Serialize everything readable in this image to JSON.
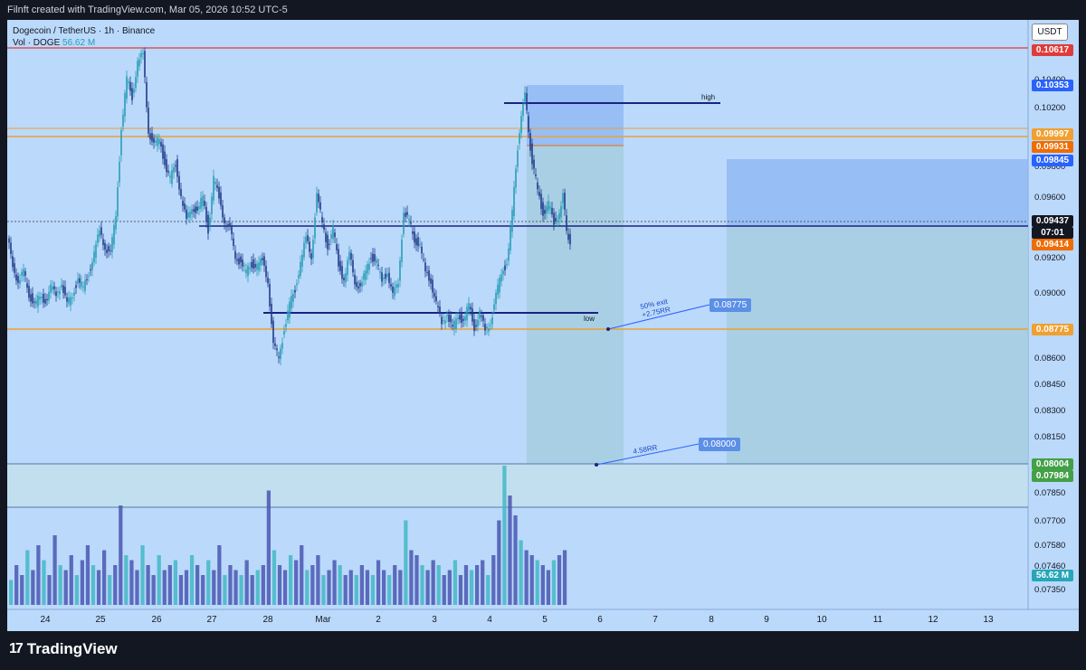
{
  "header": {
    "text": "Filnft created with TradingView.com, Mar 05, 2026 10:52 UTC-5"
  },
  "legend": {
    "symbol_line": "Dogecoin / TetherUS · 1h · Binance",
    "vol_label": "Vol · DOGE",
    "vol_value": "56.62 M"
  },
  "footer": {
    "brand": "TradingView"
  },
  "colors": {
    "background": "#bbd9fb",
    "candle": "#1f3a8a",
    "candle_up_light": "#2a9db5",
    "red_line": "#e03b3b",
    "orange_line": "#f0a030",
    "navy_line": "#1a237e",
    "target_zone": "#a6cde0",
    "stop_zone": "#8cb4f4",
    "volume": "#4a56b0"
  },
  "chart_data": {
    "type": "candlestick",
    "symbol": "Dogecoin / TetherUS",
    "timeframe": "1h",
    "exchange": "Binance",
    "currency_label": "USDT",
    "x_axis_ticks": [
      "24",
      "25",
      "26",
      "27",
      "28",
      "Mar",
      "2",
      "3",
      "4",
      "5",
      "6",
      "7",
      "8",
      "9",
      "10",
      "11",
      "12",
      "13"
    ],
    "y_axis_ticks": [
      "0.10400",
      "0.10200",
      "0.09800",
      "0.09600",
      "0.09200",
      "0.09000",
      "0.08600",
      "0.08450",
      "0.08300",
      "0.08150",
      "0.07850",
      "0.07700",
      "0.07580",
      "0.07460",
      "0.07350"
    ],
    "price_tags": [
      {
        "label": "0.10617",
        "color": "#e03b3b"
      },
      {
        "label": "0.10353",
        "color": "#2962ff"
      },
      {
        "label": "0.09997",
        "color": "#f0a030"
      },
      {
        "label": "0.09931",
        "color": "#ef6c00"
      },
      {
        "label": "0.09845",
        "color": "#2962ff"
      },
      {
        "label": "0.09437",
        "color": "#131722"
      },
      {
        "label": "07:01",
        "color": "#131722"
      },
      {
        "label": "0.09414",
        "color": "#ef6c00"
      },
      {
        "label": "0.08775",
        "color": "#f0a030"
      },
      {
        "label": "0.08004",
        "color": "#43a047"
      },
      {
        "label": "0.07984",
        "color": "#43a047"
      },
      {
        "label": "56.62 M",
        "color": "#26a6b8"
      }
    ],
    "levels": {
      "resistance_red": 0.10617,
      "orange_upper": 0.09997,
      "orange_lower": 0.08775,
      "entry": 0.09414,
      "high_line": 0.10353,
      "low_line": 0.0885
    },
    "annotations": [
      {
        "text": "high"
      },
      {
        "text": "low"
      },
      {
        "text": "50% exit +2.75RR",
        "line1": "50% exit",
        "line2": "+2.75RR",
        "tag": "0.08775"
      },
      {
        "text": "4.58RR",
        "tag": "0.08000"
      }
    ],
    "ohlc_path": [
      [
        0,
        0.0945
      ],
      [
        6,
        0.093
      ],
      [
        12,
        0.0918
      ],
      [
        18,
        0.0925
      ],
      [
        24,
        0.0912
      ],
      [
        30,
        0.0905
      ],
      [
        36,
        0.091
      ],
      [
        42,
        0.0908
      ],
      [
        48,
        0.0915
      ],
      [
        54,
        0.0912
      ],
      [
        60,
        0.0918
      ],
      [
        66,
        0.0905
      ],
      [
        72,
        0.0912
      ],
      [
        78,
        0.092
      ],
      [
        84,
        0.0915
      ],
      [
        90,
        0.0925
      ],
      [
        96,
        0.0935
      ],
      [
        102,
        0.095
      ],
      [
        108,
        0.094
      ],
      [
        114,
        0.0935
      ],
      [
        120,
        0.096
      ],
      [
        126,
        0.101
      ],
      [
        132,
        0.104
      ],
      [
        138,
        0.103
      ],
      [
        144,
        0.105
      ],
      [
        150,
        0.1055
      ],
      [
        156,
        0.101
      ],
      [
        162,
        0.1
      ],
      [
        168,
        0.1005
      ],
      [
        174,
        0.099
      ],
      [
        180,
        0.098
      ],
      [
        186,
        0.099
      ],
      [
        192,
        0.097
      ],
      [
        198,
        0.0955
      ],
      [
        204,
        0.0965
      ],
      [
        210,
        0.096
      ],
      [
        216,
        0.097
      ],
      [
        222,
        0.095
      ],
      [
        228,
        0.098
      ],
      [
        234,
        0.097
      ],
      [
        240,
        0.0955
      ],
      [
        246,
        0.095
      ],
      [
        252,
        0.0935
      ],
      [
        258,
        0.093
      ],
      [
        264,
        0.0925
      ],
      [
        270,
        0.093
      ],
      [
        276,
        0.0928
      ],
      [
        282,
        0.0932
      ],
      [
        288,
        0.092
      ],
      [
        294,
        0.088
      ],
      [
        300,
        0.0875
      ],
      [
        306,
        0.089
      ],
      [
        312,
        0.0905
      ],
      [
        318,
        0.0915
      ],
      [
        324,
        0.093
      ],
      [
        330,
        0.0945
      ],
      [
        336,
        0.0935
      ],
      [
        342,
        0.097
      ],
      [
        348,
        0.0955
      ],
      [
        354,
        0.094
      ],
      [
        360,
        0.095
      ],
      [
        366,
        0.093
      ],
      [
        372,
        0.092
      ],
      [
        378,
        0.0935
      ],
      [
        384,
        0.092
      ],
      [
        390,
        0.0915
      ],
      [
        396,
        0.0925
      ],
      [
        402,
        0.0935
      ],
      [
        408,
        0.093
      ],
      [
        414,
        0.092
      ],
      [
        420,
        0.0925
      ],
      [
        426,
        0.091
      ],
      [
        432,
        0.092
      ],
      [
        438,
        0.096
      ],
      [
        444,
        0.0955
      ],
      [
        450,
        0.0945
      ],
      [
        456,
        0.094
      ],
      [
        462,
        0.0925
      ],
      [
        468,
        0.092
      ],
      [
        474,
        0.0905
      ],
      [
        480,
        0.0895
      ],
      [
        486,
        0.09
      ],
      [
        492,
        0.089
      ],
      [
        498,
        0.09
      ],
      [
        504,
        0.0895
      ],
      [
        510,
        0.0905
      ],
      [
        516,
        0.0892
      ],
      [
        522,
        0.09
      ],
      [
        528,
        0.089
      ],
      [
        534,
        0.0895
      ],
      [
        540,
        0.091
      ],
      [
        546,
        0.0925
      ],
      [
        552,
        0.093
      ],
      [
        558,
        0.096
      ],
      [
        564,
        0.1
      ],
      [
        568,
        0.102
      ],
      [
        572,
        0.103
      ],
      [
        576,
        0.101
      ],
      [
        580,
        0.099
      ],
      [
        586,
        0.0975
      ],
      [
        592,
        0.096
      ],
      [
        598,
        0.0965
      ],
      [
        604,
        0.0955
      ],
      [
        610,
        0.096
      ],
      [
        614,
        0.097
      ],
      [
        618,
        0.095
      ],
      [
        622,
        0.0943
      ]
    ],
    "volume_bars": [
      0.25,
      0.4,
      0.3,
      0.55,
      0.35,
      0.6,
      0.45,
      0.3,
      0.7,
      0.4,
      0.35,
      0.5,
      0.3,
      0.45,
      0.6,
      0.4,
      0.35,
      0.55,
      0.3,
      0.4,
      1.0,
      0.5,
      0.45,
      0.35,
      0.6,
      0.4,
      0.3,
      0.5,
      0.35,
      0.4,
      0.45,
      0.3,
      0.35,
      0.5,
      0.4,
      0.3,
      0.45,
      0.35,
      0.6,
      0.3,
      0.4,
      0.35,
      0.3,
      0.45,
      0.3,
      0.35,
      0.4,
      1.15,
      0.55,
      0.4,
      0.35,
      0.5,
      0.45,
      0.6,
      0.35,
      0.4,
      0.5,
      0.3,
      0.35,
      0.45,
      0.4,
      0.3,
      0.35,
      0.3,
      0.4,
      0.35,
      0.3,
      0.45,
      0.35,
      0.3,
      0.4,
      0.35,
      0.85,
      0.55,
      0.5,
      0.4,
      0.35,
      0.45,
      0.4,
      0.3,
      0.35,
      0.45,
      0.3,
      0.4,
      0.35,
      0.4,
      0.45,
      0.3,
      0.5,
      0.85,
      1.4,
      1.1,
      0.9,
      0.65,
      0.55,
      0.5,
      0.45,
      0.4,
      0.35,
      0.45,
      0.5,
      0.55
    ]
  }
}
